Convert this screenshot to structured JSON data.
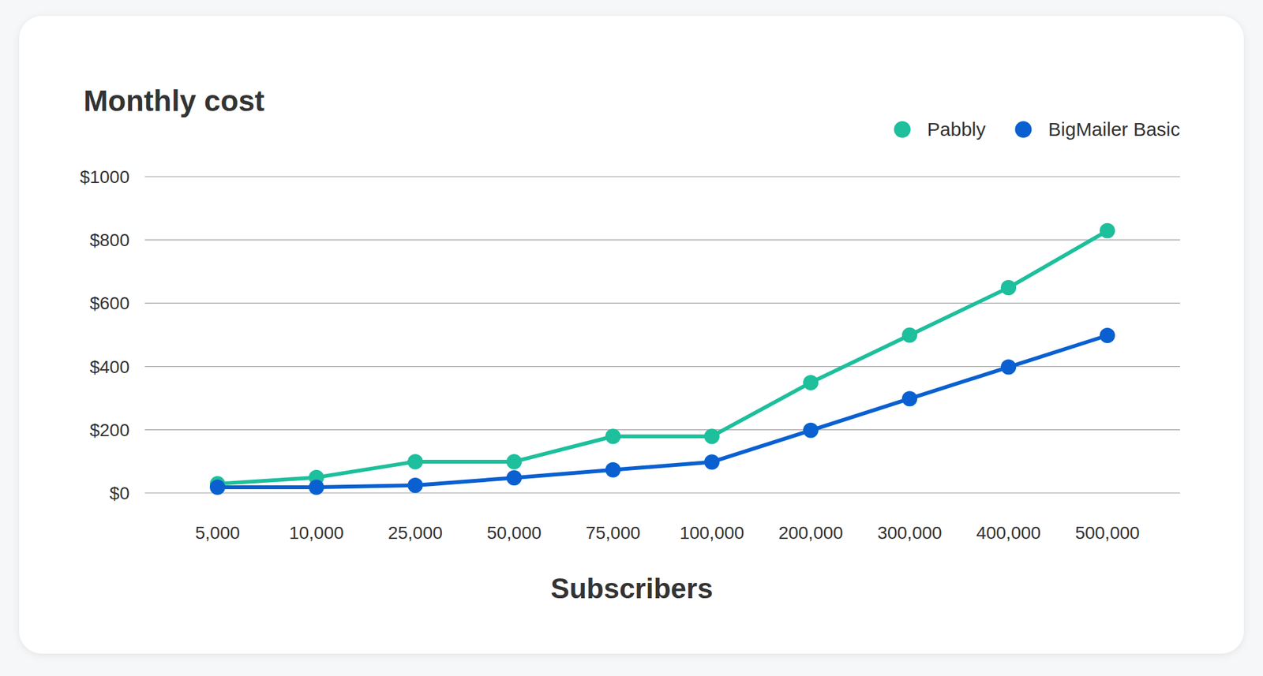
{
  "chart_data": {
    "type": "line",
    "title": "Monthly cost",
    "x_label": "Subscribers",
    "categories": [
      "5,000",
      "10,000",
      "25,000",
      "50,000",
      "75,000",
      "100,000",
      "200,000",
      "300,000",
      "400,000",
      "500,000"
    ],
    "series": [
      {
        "name": "Pabbly",
        "color": "#1dbf9c",
        "marker": "circle",
        "values": [
          29,
          49,
          99,
          99,
          179,
          179,
          349,
          499,
          649,
          829
        ]
      },
      {
        "name": "BigMailer Basic",
        "color": "#0a60d0",
        "marker": "circle",
        "values": [
          18,
          18,
          24,
          48,
          73,
          98,
          198,
          298,
          398,
          498
        ]
      }
    ],
    "ylim": [
      0,
      1000
    ],
    "yticks": [
      {
        "value": 0,
        "label": "$0"
      },
      {
        "value": 200,
        "label": "$200"
      },
      {
        "value": 400,
        "label": "$400"
      },
      {
        "value": 600,
        "label": "$600"
      },
      {
        "value": 800,
        "label": "$800"
      },
      {
        "value": 1000,
        "label": "$1000"
      }
    ],
    "grid": true,
    "legend": "top-right"
  }
}
